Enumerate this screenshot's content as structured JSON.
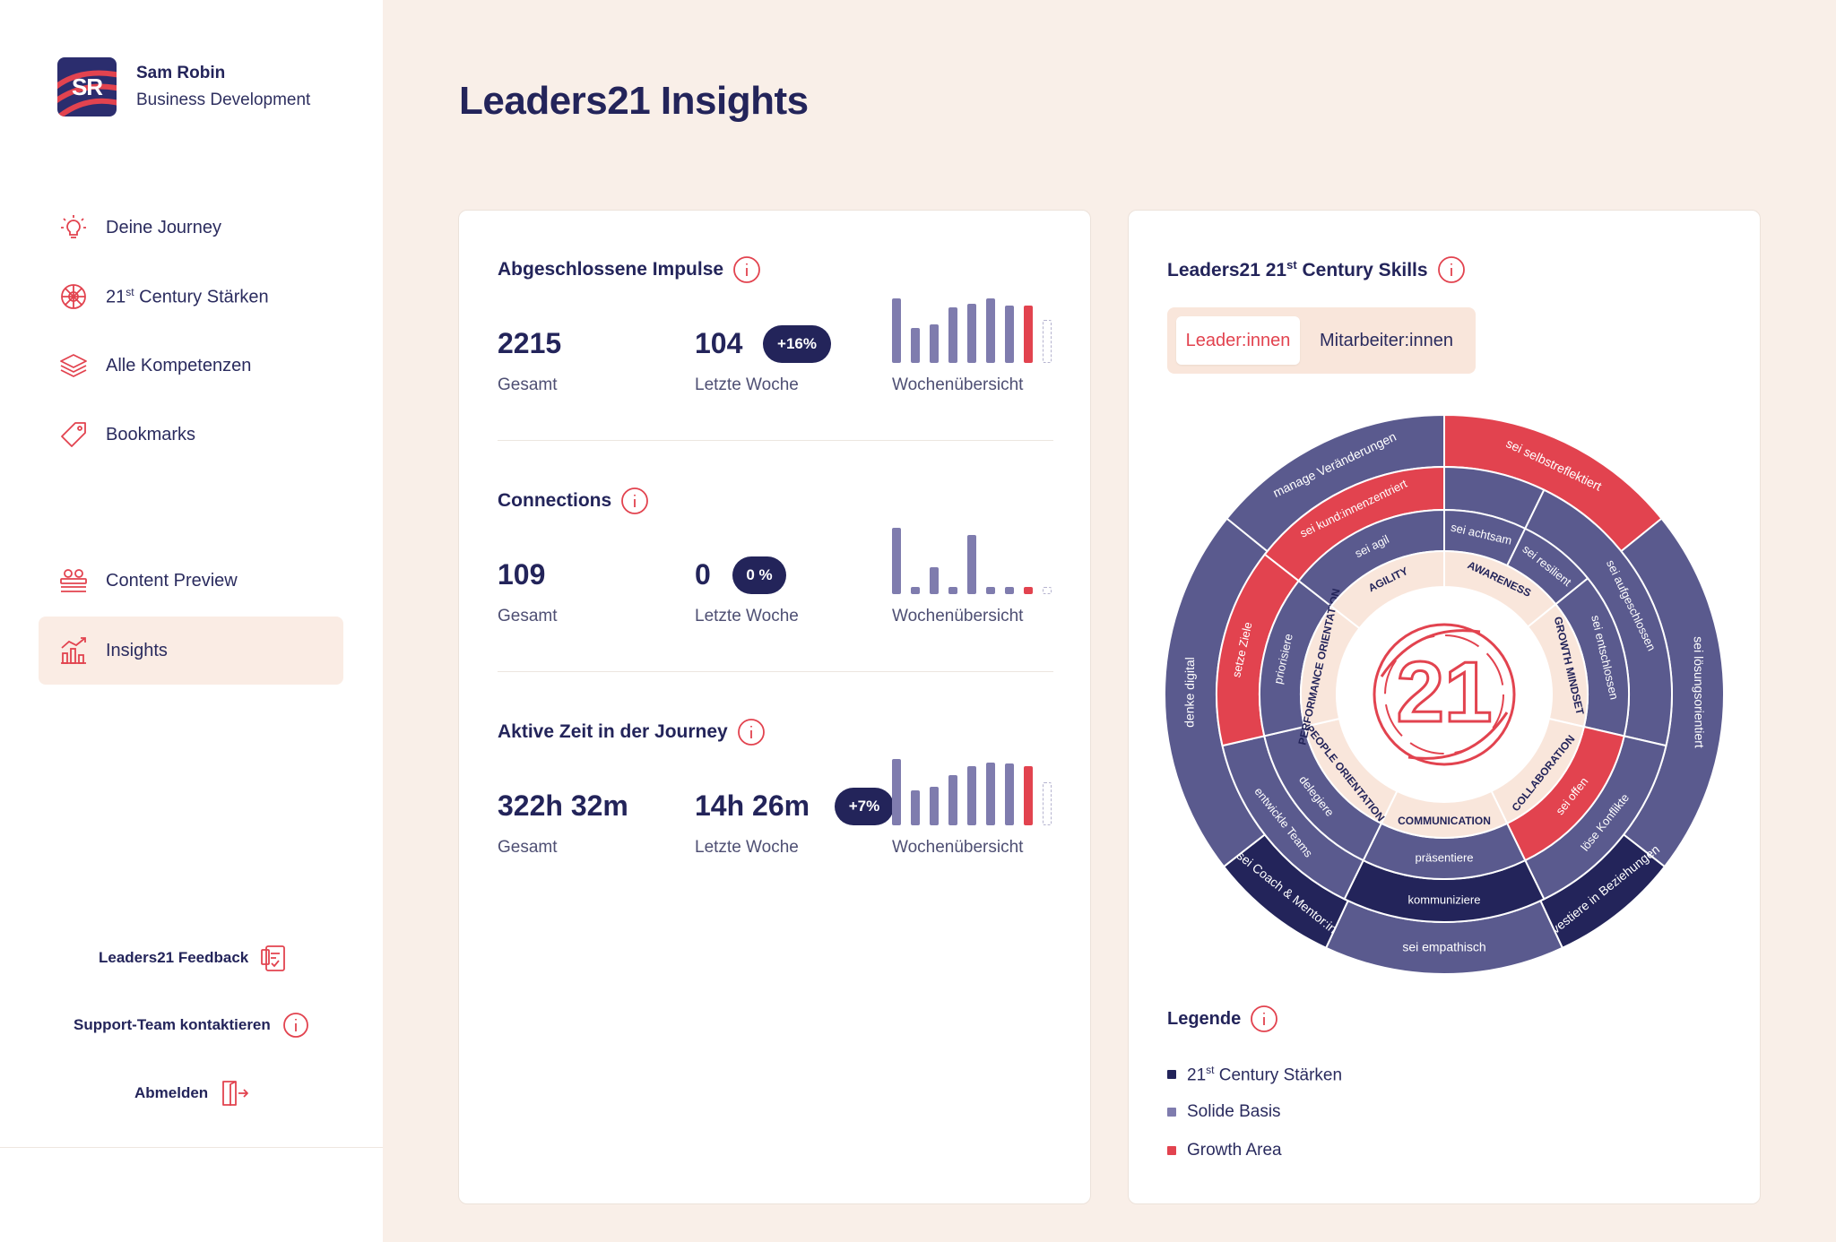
{
  "colors": {
    "navy": "#23245a",
    "purple": "#5a5a8e",
    "lavender": "#7f7cae",
    "red": "#e2434f",
    "cream": "#f9efe8",
    "peach": "#f9e6db"
  },
  "profile": {
    "initials": "SR",
    "name": "Sam Robin",
    "role": "Business Development"
  },
  "nav": [
    {
      "label": "Deine Journey",
      "icon": "lightbulb-icon"
    },
    {
      "label_main": "21",
      "label_sup": "st",
      "label_rest": " Century Stärken",
      "icon": "compass-wheel-icon"
    },
    {
      "label": "Alle Kompetenzen",
      "icon": "layers-icon"
    },
    {
      "label": "Bookmarks",
      "icon": "tag-icon"
    },
    {
      "label": "Content Preview",
      "icon": "preview-icon"
    },
    {
      "label": "Insights",
      "icon": "chart-icon"
    }
  ],
  "footer": {
    "feedback": "Leaders21 Feedback",
    "support": "Support-Team kontaktieren",
    "logout": "Abmelden"
  },
  "page": {
    "title": "Leaders21 Insights"
  },
  "stats": [
    {
      "title": "Abgeschlossene Impulse",
      "total": "2215",
      "total_label": "Gesamt",
      "week": "104",
      "week_label": "Letzte Woche",
      "badge": "+16%",
      "chart_label": "Wochenübersicht",
      "bars": [
        0.92,
        0.5,
        0.55,
        0.8,
        0.85,
        0.92,
        0.82,
        0.82,
        0.62
      ]
    },
    {
      "title": "Connections",
      "total": "109",
      "total_label": "Gesamt",
      "week": "0",
      "week_label": "Letzte Woche",
      "badge": "0 %",
      "chart_label": "Wochenübersicht",
      "bars": [
        0.95,
        0.1,
        0.38,
        0.1,
        0.85,
        0.1,
        0.1,
        0.1,
        0.1
      ]
    },
    {
      "title": "Aktive Zeit in der Journey",
      "total": "322h 32m",
      "total_label": "Gesamt",
      "week": "14h 26m",
      "week_label": "Letzte Woche",
      "badge": "+7%",
      "chart_label": "Wochenübersicht",
      "bars": [
        0.95,
        0.5,
        0.55,
        0.72,
        0.85,
        0.9,
        0.88,
        0.85,
        0.62
      ]
    }
  ],
  "skills": {
    "title_main": "Leaders21 21",
    "title_sup": "st",
    "title_rest": " Century Skills",
    "tab_active": "Leader:innen",
    "tab_inactive": "Mitarbeiter:innen",
    "center_logo": "21",
    "categories": [
      "AWARENESS",
      "GROWTH MINDSET",
      "COLLABORATION",
      "COMMUNICATION",
      "PEOPLE ORIENTATION",
      "PERFORMANCE ORIENTATION",
      "AGILITY"
    ],
    "ring1": [
      "sei achtsam",
      "sei resilient",
      "sei entschlossen",
      "sei offen",
      "präsentiere",
      "delegiere",
      "priorisiere",
      "sei agil"
    ],
    "ring2": [
      "sei aufgeschlossen",
      "löse Konflikte",
      "kommuniziere",
      "entwickle Teams",
      "setze Ziele",
      "sei kund:innenzentriert"
    ],
    "ring3": [
      "sei selbstreflektiert",
      "sei lösungsorientiert",
      "investiere in Beziehungen",
      "sei empathisch",
      "sei Coach & Mentor:in",
      "denke digital",
      "manage Veränderungen"
    ]
  },
  "legend": {
    "title": "Legende",
    "items": [
      {
        "label_main": "21",
        "label_sup": "st",
        "label_rest": " Century Stärken",
        "color": "#23245a"
      },
      {
        "label": "Solide Basis",
        "color": "#7f7cae"
      },
      {
        "label": "Growth Area",
        "color": "#e2434f"
      }
    ]
  }
}
